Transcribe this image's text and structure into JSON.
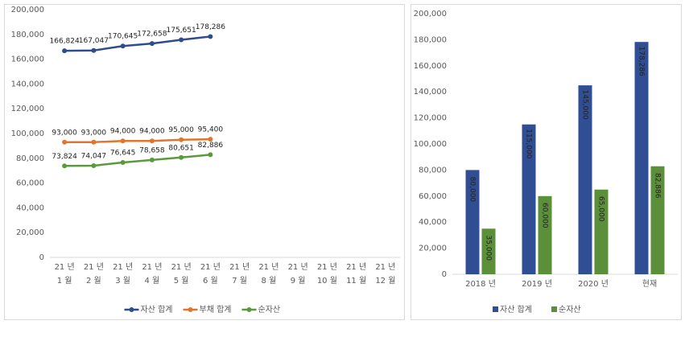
{
  "chart_data": [
    {
      "type": "line",
      "categories": [
        [
          "21 년",
          "1 월"
        ],
        [
          "21 년",
          "2 월"
        ],
        [
          "21 년",
          "3 월"
        ],
        [
          "21 년",
          "4 월"
        ],
        [
          "21 년",
          "5 월"
        ],
        [
          "21 년",
          "6 월"
        ],
        [
          "21 년",
          "7 월"
        ],
        [
          "21 년",
          "8 월"
        ],
        [
          "21 년",
          "9 월"
        ],
        [
          "21 년",
          "10 월"
        ],
        [
          "21 년",
          "11 월"
        ],
        [
          "21 년",
          "12 월"
        ]
      ],
      "series": [
        {
          "name": "자산 합계",
          "color": "#2f4d8e",
          "values": [
            166824,
            167047,
            170645,
            172658,
            175651,
            178286,
            null,
            null,
            null,
            null,
            null,
            null
          ],
          "value_labels": [
            "166,824",
            "167,047",
            "170,645",
            "172,658",
            "175,651",
            "178,286",
            null,
            null,
            null,
            null,
            null,
            null
          ]
        },
        {
          "name": "부채 합계",
          "color": "#e0762e",
          "values": [
            93000,
            93000,
            94000,
            94000,
            95000,
            95400,
            null,
            null,
            null,
            null,
            null,
            null
          ],
          "value_labels": [
            "93,000",
            "93,000",
            "94,000",
            "94,000",
            "95,000",
            "95,400",
            null,
            null,
            null,
            null,
            null,
            null
          ]
        },
        {
          "name": "순자산",
          "color": "#5b9a3b",
          "values": [
            73824,
            74047,
            76645,
            78658,
            80651,
            82886,
            null,
            null,
            null,
            null,
            null,
            null
          ],
          "value_labels": [
            "73,824",
            "74,047",
            "76,645",
            "78,658",
            "80,651",
            "82,886",
            null,
            null,
            null,
            null,
            null,
            null
          ]
        }
      ],
      "ylim": [
        0,
        200000
      ],
      "yticks": [
        0,
        {
          "value": 20000,
          "label": "20,000"
        },
        {
          "value": 40000,
          "label": "40,000"
        },
        {
          "value": 60000,
          "label": "60,000"
        },
        {
          "value": 80000,
          "label": "80,000"
        },
        {
          "value": 100000,
          "label": "100,000"
        },
        {
          "value": 120000,
          "label": "120,000"
        },
        {
          "value": 140000,
          "label": "140,000"
        },
        {
          "value": 160000,
          "label": "160,000"
        },
        {
          "value": 180000,
          "label": "180,000"
        },
        {
          "value": 200000,
          "label": "200,000"
        }
      ],
      "legend": "bottom"
    },
    {
      "type": "bar",
      "categories": [
        "2018 년",
        "2019 년",
        "2020 년",
        "현재"
      ],
      "series": [
        {
          "name": "자산 합계",
          "color": "#2f4e94",
          "values": [
            80000,
            115000,
            145000,
            178286
          ],
          "value_labels": [
            "80,000",
            "115,000",
            "145,000",
            "178,286"
          ]
        },
        {
          "name": "순자산",
          "color": "#5b8f3a",
          "values": [
            35000,
            60000,
            65000,
            82886
          ],
          "value_labels": [
            "35,000",
            "60,000",
            "65,000",
            "82,886"
          ]
        }
      ],
      "ylim": [
        0,
        200000
      ],
      "yticks": [
        0,
        {
          "value": 20000,
          "label": "20,000"
        },
        {
          "value": 40000,
          "label": "40,000"
        },
        {
          "value": 60000,
          "label": "60,000"
        },
        {
          "value": 80000,
          "label": "80,000"
        },
        {
          "value": 100000,
          "label": "100,000"
        },
        {
          "value": 120000,
          "label": "120,000"
        },
        {
          "value": 140000,
          "label": "140,000"
        },
        {
          "value": 160000,
          "label": "160,000"
        },
        {
          "value": 180000,
          "label": "180,000"
        },
        {
          "value": 200000,
          "label": "200,000"
        }
      ],
      "legend": "bottom"
    }
  ]
}
